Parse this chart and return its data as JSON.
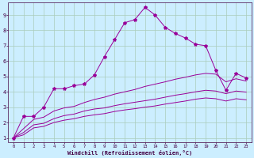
{
  "xlabel": "Windchill (Refroidissement éolien,°C)",
  "bg_color": "#cceeff",
  "line_color": "#990099",
  "grid_color": "#aaccbb",
  "x_data": [
    0,
    1,
    2,
    3,
    4,
    5,
    6,
    7,
    8,
    9,
    10,
    11,
    12,
    13,
    14,
    15,
    16,
    17,
    18,
    19,
    20,
    21,
    22,
    23
  ],
  "y_main": [
    1.0,
    2.4,
    2.4,
    3.0,
    4.2,
    4.2,
    4.4,
    4.5,
    5.1,
    6.3,
    7.4,
    8.5,
    8.7,
    9.5,
    9.0,
    8.2,
    7.8,
    7.5,
    7.1,
    7.0,
    5.4,
    4.1,
    5.2,
    4.9
  ],
  "y_upper": [
    1.0,
    1.6,
    2.2,
    2.35,
    2.75,
    2.95,
    3.05,
    3.3,
    3.5,
    3.65,
    3.85,
    4.0,
    4.15,
    4.35,
    4.5,
    4.65,
    4.82,
    4.95,
    5.1,
    5.2,
    5.15,
    4.65,
    4.85,
    4.7
  ],
  "y_mid": [
    1.0,
    1.35,
    1.85,
    1.95,
    2.25,
    2.45,
    2.55,
    2.75,
    2.88,
    2.95,
    3.1,
    3.22,
    3.32,
    3.42,
    3.52,
    3.65,
    3.78,
    3.88,
    4.0,
    4.1,
    4.05,
    3.88,
    4.05,
    3.98
  ],
  "y_lower": [
    1.0,
    1.2,
    1.65,
    1.75,
    2.0,
    2.15,
    2.25,
    2.4,
    2.5,
    2.58,
    2.72,
    2.82,
    2.9,
    3.0,
    3.08,
    3.2,
    3.3,
    3.4,
    3.52,
    3.6,
    3.55,
    3.4,
    3.55,
    3.48
  ],
  "ylim": [
    0.7,
    9.8
  ],
  "xlim": [
    -0.5,
    23.5
  ],
  "yticks": [
    1,
    2,
    3,
    4,
    5,
    6,
    7,
    8,
    9
  ],
  "xticks": [
    0,
    1,
    2,
    3,
    4,
    5,
    6,
    7,
    8,
    9,
    10,
    11,
    12,
    13,
    14,
    15,
    16,
    17,
    18,
    19,
    20,
    21,
    22,
    23
  ],
  "xlabel_fontsize": 5,
  "tick_fontsize_x": 4,
  "tick_fontsize_y": 5
}
